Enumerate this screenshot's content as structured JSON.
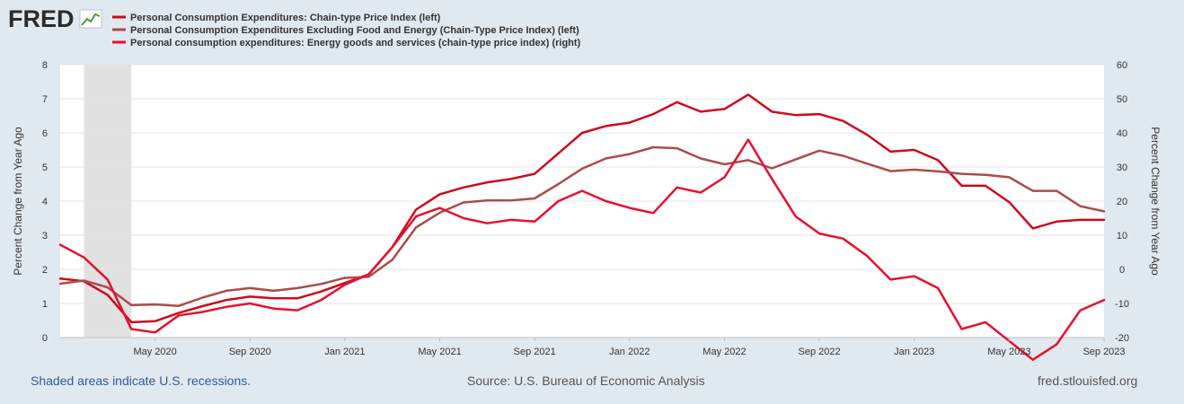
{
  "logo": {
    "text": "FRED",
    "icon": "chart-line-icon"
  },
  "footer": {
    "recession_note": "Shaded areas indicate U.S. recessions.",
    "source": "Source: U.S. Bureau of Economic Analysis",
    "site": "fred.stlouisfed.org"
  },
  "chart_data": {
    "type": "line",
    "title": "",
    "ylabel_left": "Percent Change from Year Ago",
    "ylabel_right": "Percent Change from Year Ago",
    "y_left_range": [
      0,
      8
    ],
    "y_left_ticks": [
      "0",
      "1",
      "2",
      "3",
      "4",
      "5",
      "6",
      "7",
      "8"
    ],
    "y_right_range": [
      -20,
      60
    ],
    "y_right_ticks": [
      "-20",
      "-10",
      "0",
      "10",
      "20",
      "30",
      "40",
      "50",
      "60"
    ],
    "x_tick_labels": [
      "May 2020",
      "Sep 2020",
      "Jan 2021",
      "May 2021",
      "Sep 2021",
      "Jan 2022",
      "May 2022",
      "Sep 2022",
      "Jan 2023",
      "May 2023",
      "Sep 2023"
    ],
    "x_tick_index": [
      4,
      8,
      12,
      16,
      20,
      24,
      28,
      32,
      36,
      40,
      44
    ],
    "periods": [
      "2020-01",
      "2020-02",
      "2020-03",
      "2020-04",
      "2020-05",
      "2020-06",
      "2020-07",
      "2020-08",
      "2020-09",
      "2020-10",
      "2020-11",
      "2020-12",
      "2021-01",
      "2021-02",
      "2021-03",
      "2021-04",
      "2021-05",
      "2021-06",
      "2021-07",
      "2021-08",
      "2021-09",
      "2021-10",
      "2021-11",
      "2021-12",
      "2022-01",
      "2022-02",
      "2022-03",
      "2022-04",
      "2022-05",
      "2022-06",
      "2022-07",
      "2022-08",
      "2022-09",
      "2022-10",
      "2022-11",
      "2022-12",
      "2023-01",
      "2023-02",
      "2023-03",
      "2023-04",
      "2023-05",
      "2023-06",
      "2023-07",
      "2023-08",
      "2023-09"
    ],
    "recessions": [
      {
        "start_index": 1,
        "end_index": 3
      }
    ],
    "grid": true,
    "series": [
      {
        "name": "Personal Consumption Expenditures: Chain-type Price Index (left)",
        "axis": "left",
        "color": "#cc0a1e",
        "values": [
          1.73,
          1.65,
          1.25,
          0.45,
          0.48,
          0.72,
          0.92,
          1.1,
          1.2,
          1.15,
          1.15,
          1.35,
          1.6,
          1.85,
          2.65,
          3.75,
          4.2,
          4.4,
          4.55,
          4.65,
          4.8,
          5.4,
          6.0,
          6.2,
          6.3,
          6.55,
          6.9,
          6.62,
          6.7,
          7.12,
          6.62,
          6.52,
          6.55,
          6.35,
          5.95,
          5.45,
          5.5,
          5.2,
          4.45,
          4.45,
          3.97,
          3.2,
          3.4,
          3.45,
          3.45
        ]
      },
      {
        "name": "Personal Consumption Expenditures Excluding Food and Energy (Chain-Type Price Index) (left)",
        "axis": "left",
        "color": "#a94c4c",
        "values": [
          1.58,
          1.67,
          1.47,
          0.95,
          0.97,
          0.93,
          1.17,
          1.37,
          1.45,
          1.37,
          1.45,
          1.57,
          1.75,
          1.78,
          2.28,
          3.23,
          3.66,
          3.96,
          4.02,
          4.02,
          4.08,
          4.5,
          4.95,
          5.25,
          5.38,
          5.58,
          5.55,
          5.25,
          5.08,
          5.2,
          4.96,
          5.22,
          5.48,
          5.33,
          5.1,
          4.88,
          4.92,
          4.87,
          4.8,
          4.77,
          4.7,
          4.3,
          4.3,
          3.85,
          3.7
        ]
      },
      {
        "name": "Personal consumption expenditures: Energy goods and services (chain-type price index) (right)",
        "axis": "right",
        "color": "#e8102e",
        "values": [
          7.2,
          3.5,
          -3.0,
          -17.5,
          -18.5,
          -13.5,
          -12.5,
          -11.0,
          -10.0,
          -11.5,
          -12.0,
          -9.0,
          -4.5,
          -1.5,
          6.5,
          15.5,
          18.0,
          15.0,
          13.5,
          14.5,
          14.0,
          20.0,
          23.0,
          20.0,
          18.0,
          16.5,
          24.0,
          22.5,
          27.0,
          38.0,
          26.5,
          15.5,
          10.5,
          9.0,
          4.0,
          -3.0,
          -2.0,
          -5.5,
          -17.5,
          -15.5,
          -21.0,
          -26.5,
          -22.0,
          -12.0,
          -9.0
        ]
      }
    ]
  }
}
